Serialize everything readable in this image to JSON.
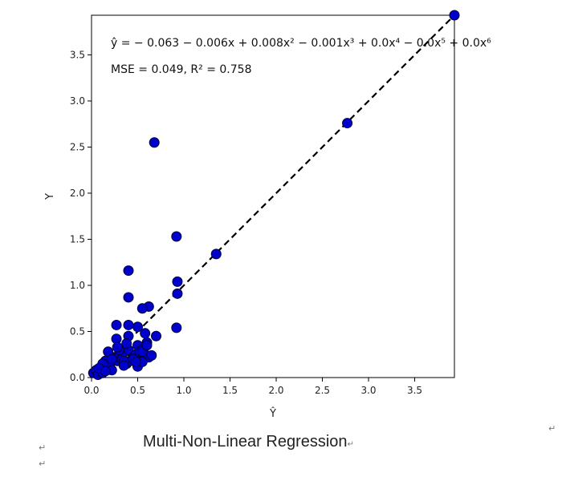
{
  "caption": "Multi-Non-Linear Regression",
  "paragraph_mark": "↵",
  "chart_data": {
    "type": "scatter",
    "title": "",
    "xlabel": "Ŷ",
    "ylabel": "Y",
    "xlim": [
      0,
      3.93
    ],
    "ylim": [
      0,
      3.93
    ],
    "xticks": [
      "0.0",
      "0.5",
      "1.0",
      "1.5",
      "2.0",
      "2.5",
      "3.0",
      "3.5"
    ],
    "yticks": [
      "0.0",
      "0.5",
      "1.0",
      "1.5",
      "2.0",
      "2.5",
      "3.0",
      "3.5"
    ],
    "grid": false,
    "annotations": [
      "ŷ = − 0.063 − 0.006x + 0.008x² − 0.001x³ + 0.0x⁴ − 0.0x⁵ + 0.0x⁶",
      "MSE = 0.049, R² = 0.758"
    ],
    "marker_color": "#0000cc",
    "marker_edge": "#000033",
    "reference_line": {
      "style": "dashed",
      "color": "#000000",
      "from": [
        0,
        0
      ],
      "to": [
        3.93,
        3.93
      ]
    },
    "series": [
      {
        "x": [
          0.02,
          0.05,
          0.07,
          0.1,
          0.12,
          0.15,
          0.17,
          0.2,
          0.22,
          0.25,
          0.28,
          0.3,
          0.33,
          0.36,
          0.38,
          0.4,
          0.42,
          0.45,
          0.48,
          0.5,
          0.52,
          0.55,
          0.58,
          0.6,
          0.62,
          0.65,
          0.12,
          0.18,
          0.22,
          0.27,
          0.3,
          0.35,
          0.4,
          0.45,
          0.5,
          0.55,
          0.6,
          0.27,
          0.35,
          0.4,
          0.5,
          0.55,
          0.62,
          0.7,
          0.55,
          0.4,
          0.4,
          0.68,
          0.92,
          0.93,
          0.93,
          0.92,
          1.35,
          2.77,
          3.93,
          0.08,
          0.15,
          0.28,
          0.38,
          0.48,
          0.58
        ],
        "y": [
          0.05,
          0.08,
          0.03,
          0.1,
          0.05,
          0.18,
          0.12,
          0.15,
          0.08,
          0.22,
          0.18,
          0.25,
          0.2,
          0.28,
          0.15,
          0.3,
          0.18,
          0.22,
          0.25,
          0.35,
          0.28,
          0.3,
          0.25,
          0.38,
          0.22,
          0.24,
          0.15,
          0.28,
          0.2,
          0.42,
          0.3,
          0.18,
          0.45,
          0.2,
          0.55,
          0.28,
          0.35,
          0.57,
          0.13,
          0.57,
          0.12,
          0.17,
          0.77,
          0.45,
          0.75,
          0.87,
          1.16,
          2.55,
          1.53,
          1.04,
          0.91,
          0.54,
          1.34,
          2.76,
          3.93,
          0.1,
          0.07,
          0.33,
          0.37,
          0.17,
          0.48
        ]
      }
    ]
  }
}
